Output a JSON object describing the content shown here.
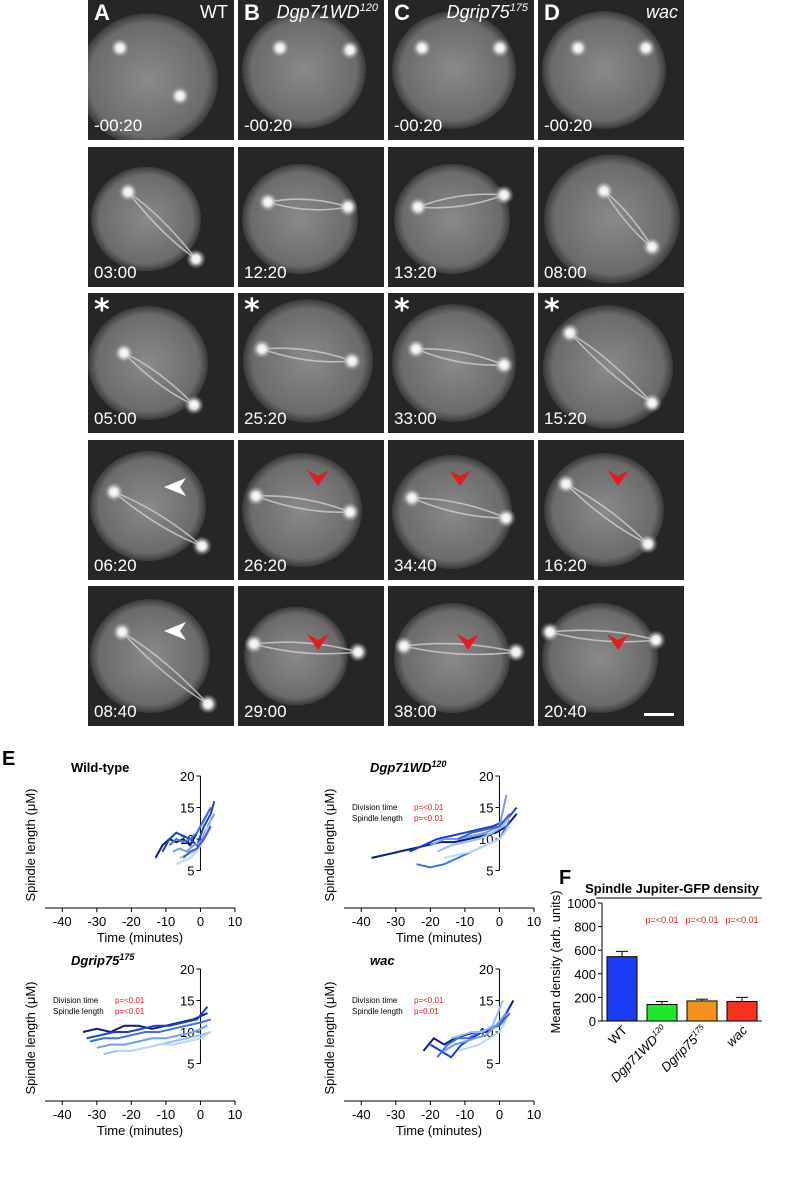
{
  "micrograph": {
    "columns": [
      {
        "label": "A",
        "condition": "WT",
        "times": [
          "-00:20",
          "03:00",
          "05:00",
          "06:20",
          "08:40"
        ]
      },
      {
        "label": "B",
        "condition": "Dgp71WD",
        "condition_sup": "120",
        "times": [
          "-00:20",
          "12:20",
          "25:20",
          "26:20",
          "29:00"
        ]
      },
      {
        "label": "C",
        "condition": "Dgrip75",
        "condition_sup": "175",
        "times": [
          "-00:20",
          "13:20",
          "33:00",
          "34:40",
          "38:00"
        ]
      },
      {
        "label": "D",
        "condition": "wac",
        "times": [
          "-00:20",
          "08:00",
          "15:20",
          "16:20",
          "20:40"
        ]
      }
    ],
    "asterisk": "*",
    "arrow_colors": {
      "wt": "#ffffff",
      "mutant": "#e8191f"
    }
  },
  "panel_e_label": "E",
  "panel_f_label": "F",
  "line_charts": [
    {
      "title": "Wild-type",
      "title_italic": false,
      "stats": []
    },
    {
      "title": "Dgp71WD",
      "title_sup": "120",
      "title_italic": true,
      "stats": [
        {
          "label": "Division time",
          "p": "p=<0.01"
        },
        {
          "label": "Spindle length",
          "p": "p=<0.01"
        }
      ]
    },
    {
      "title": "Dgrip75",
      "title_sup": "175",
      "title_italic": true,
      "stats": [
        {
          "label": "Division time",
          "p": "p=<0.01"
        },
        {
          "label": "Spindle length",
          "p": "p=<0.01"
        }
      ]
    },
    {
      "title": "wac",
      "title_italic": true,
      "stats": [
        {
          "label": "Division time",
          "p": "p=<0.01"
        },
        {
          "label": "Spindle length",
          "p": "p=0.01"
        }
      ]
    }
  ],
  "line_axes": {
    "xlabel": "Time (minutes)",
    "ylabel": "Spindle length (μM)",
    "xticks": [
      "-40",
      "-30",
      "-20",
      "-10",
      "0",
      "10"
    ],
    "yticks": [
      "5",
      "10",
      "15",
      "20"
    ]
  },
  "chart_data": [
    {
      "type": "line",
      "title": "Wild-type",
      "xlabel": "Time (minutes)",
      "ylabel": "Spindle length (μM)",
      "xlim": [
        -45,
        10
      ],
      "ylim": [
        0,
        20
      ],
      "series": [
        {
          "x": [
            -13,
            -11,
            -9,
            -7,
            -5,
            -3,
            -1,
            1,
            3
          ],
          "y": [
            7,
            9,
            10,
            9.5,
            10,
            9,
            11,
            13,
            15
          ]
        },
        {
          "x": [
            -11,
            -9,
            -7,
            -5,
            -3,
            -1,
            1,
            3,
            4
          ],
          "y": [
            8,
            10,
            11,
            10.5,
            10,
            9,
            12,
            14,
            16
          ]
        },
        {
          "x": [
            -9,
            -7,
            -5,
            -3,
            -1,
            1,
            3
          ],
          "y": [
            9,
            10,
            9.5,
            10,
            11,
            13,
            15
          ]
        },
        {
          "x": [
            -8,
            -6,
            -4,
            -2,
            0,
            2,
            4
          ],
          "y": [
            8,
            8.5,
            8,
            9,
            9.5,
            12,
            14
          ]
        },
        {
          "x": [
            -6,
            -4,
            -2,
            0,
            2,
            3
          ],
          "y": [
            7,
            7.5,
            8,
            9,
            11,
            13
          ]
        },
        {
          "x": [
            -7,
            -5,
            -3,
            -1,
            1,
            2
          ],
          "y": [
            6,
            6.5,
            7,
            8,
            10,
            12
          ]
        },
        {
          "x": [
            -5,
            -3,
            -1,
            1,
            3
          ],
          "y": [
            7,
            8,
            8.5,
            10,
            12
          ]
        }
      ]
    },
    {
      "type": "line",
      "title": "Dgp71WD120",
      "xlabel": "Time (minutes)",
      "ylabel": "Spindle length (μM)",
      "xlim": [
        -45,
        10
      ],
      "ylim": [
        0,
        20
      ],
      "series": [
        {
          "x": [
            -37,
            -33,
            -29,
            -25,
            -21,
            -17,
            -13,
            -9,
            -5,
            -1,
            2,
            5
          ],
          "y": [
            7,
            7.5,
            8,
            8.5,
            9,
            9.5,
            9.5,
            10,
            10.5,
            11,
            12,
            14
          ]
        },
        {
          "x": [
            -26,
            -22,
            -18,
            -14,
            -10,
            -6,
            -2,
            2,
            5
          ],
          "y": [
            8,
            9,
            10,
            10.5,
            11,
            11.5,
            12,
            13,
            15
          ]
        },
        {
          "x": [
            -24,
            -20,
            -16,
            -12,
            -8,
            -4,
            0,
            3
          ],
          "y": [
            6,
            5.5,
            6,
            7,
            8,
            9,
            10,
            13
          ]
        },
        {
          "x": [
            -20,
            -16,
            -12,
            -8,
            -4,
            0,
            2
          ],
          "y": [
            9,
            10,
            10,
            10.5,
            11,
            12,
            17
          ]
        },
        {
          "x": [
            -18,
            -14,
            -10,
            -6,
            -2,
            1,
            3
          ],
          "y": [
            8,
            9,
            9.5,
            10,
            11,
            12,
            14
          ]
        },
        {
          "x": [
            -16,
            -12,
            -8,
            -4,
            0,
            3
          ],
          "y": [
            7,
            7.5,
            8,
            9,
            10,
            12
          ]
        },
        {
          "x": [
            -12,
            -8,
            -4,
            0,
            3
          ],
          "y": [
            10,
            11,
            11.5,
            12,
            14
          ]
        }
      ]
    },
    {
      "type": "line",
      "title": "Dgrip75175",
      "xlabel": "Time (minutes)",
      "ylabel": "Spindle length (μM)",
      "xlim": [
        -45,
        10
      ],
      "ylim": [
        0,
        20
      ],
      "series": [
        {
          "x": [
            -34,
            -30,
            -26,
            -22,
            -18,
            -14,
            -10,
            -6,
            -2,
            2
          ],
          "y": [
            10,
            10.5,
            10,
            11,
            11,
            10.5,
            11,
            11.5,
            12,
            13
          ]
        },
        {
          "x": [
            -33,
            -29,
            -25,
            -21,
            -17,
            -13,
            -9,
            -5,
            -1,
            2
          ],
          "y": [
            9,
            9.5,
            10,
            10,
            10.5,
            11,
            11,
            11.5,
            12,
            14
          ]
        },
        {
          "x": [
            -32,
            -28,
            -24,
            -20,
            -16,
            -12,
            -8,
            -4,
            0,
            3
          ],
          "y": [
            8.5,
            9,
            9,
            9.5,
            10,
            10,
            10.5,
            11,
            11.5,
            12
          ]
        },
        {
          "x": [
            -30,
            -26,
            -22,
            -18,
            -14,
            -10,
            -6,
            -2,
            2
          ],
          "y": [
            7.5,
            8,
            8,
            8.5,
            9,
            9,
            9.5,
            10,
            11
          ]
        },
        {
          "x": [
            -28,
            -24,
            -20,
            -16,
            -12,
            -8,
            -4,
            0,
            3
          ],
          "y": [
            6.5,
            7,
            7,
            7.5,
            8,
            8.5,
            9,
            9.5,
            10
          ]
        },
        {
          "x": [
            -24,
            -20,
            -16,
            -12,
            -8,
            -4,
            0,
            3
          ],
          "y": [
            7,
            7,
            7.5,
            8,
            8,
            8.5,
            9,
            10
          ]
        }
      ]
    },
    {
      "type": "line",
      "title": "wac",
      "xlabel": "Time (minutes)",
      "ylabel": "Spindle length (μM)",
      "xlim": [
        -45,
        10
      ],
      "ylim": [
        0,
        20
      ],
      "series": [
        {
          "x": [
            -22,
            -19,
            -16,
            -13,
            -10,
            -7,
            -4,
            -1,
            2,
            4
          ],
          "y": [
            7,
            9,
            8,
            9,
            9.5,
            10,
            10,
            11,
            13,
            15
          ]
        },
        {
          "x": [
            -20,
            -17,
            -14,
            -11,
            -8,
            -5,
            -2,
            1,
            3
          ],
          "y": [
            8,
            7,
            6,
            8,
            9,
            10,
            10.5,
            12,
            14
          ]
        },
        {
          "x": [
            -18,
            -15,
            -12,
            -9,
            -6,
            -3,
            0,
            3
          ],
          "y": [
            6,
            8,
            9,
            9,
            10,
            10.5,
            11,
            13
          ]
        },
        {
          "x": [
            -16,
            -13,
            -10,
            -7,
            -4,
            -1,
            2
          ],
          "y": [
            7,
            8,
            8.5,
            9,
            9.5,
            11,
            13
          ]
        },
        {
          "x": [
            -14,
            -11,
            -8,
            -5,
            -2,
            1
          ],
          "y": [
            9,
            9.5,
            10,
            10,
            11,
            15
          ]
        },
        {
          "x": [
            -12,
            -9,
            -6,
            -3,
            0,
            2
          ],
          "y": [
            7,
            7.5,
            8,
            9,
            10,
            12
          ]
        }
      ]
    },
    {
      "type": "bar",
      "title": "Spindle Jupiter-GFP density",
      "xlabel": "",
      "ylabel": "Mean density (arb. units)",
      "ylim": [
        0,
        1000
      ],
      "categories": [
        "WT",
        "Dgp71WD120",
        "Dgrip75175",
        "wac"
      ],
      "values": [
        545,
        140,
        170,
        165
      ],
      "errors": [
        45,
        25,
        15,
        35
      ],
      "colors": [
        "#1a3df5",
        "#1ee826",
        "#f5921e",
        "#f5321e"
      ],
      "p_values": [
        "",
        "p=<0.01",
        "p=<0.01",
        "p=<0.01"
      ],
      "yticks": [
        "0",
        "200",
        "400",
        "600",
        "800",
        "1000"
      ]
    }
  ]
}
